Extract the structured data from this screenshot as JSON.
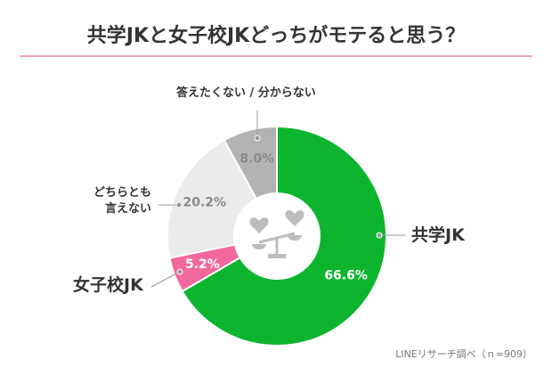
{
  "chart_data": {
    "type": "donut",
    "title": "共学JKと女子校JKどっちがモテると思う？",
    "categories": [
      "共学JK",
      "女子校JK",
      "どちらとも言えない",
      "答えたくない / 分からない"
    ],
    "values": [
      66.6,
      5.2,
      20.2,
      8.0
    ],
    "value_labels": [
      "66.6%",
      "5.2%",
      "20.2%",
      "8.0%"
    ],
    "colors": [
      "#0db52e",
      "#f2679d",
      "#ebebeb",
      "#b3b3b3"
    ],
    "source": "LINEリサーチ調べ（ｎ=909）"
  }
}
